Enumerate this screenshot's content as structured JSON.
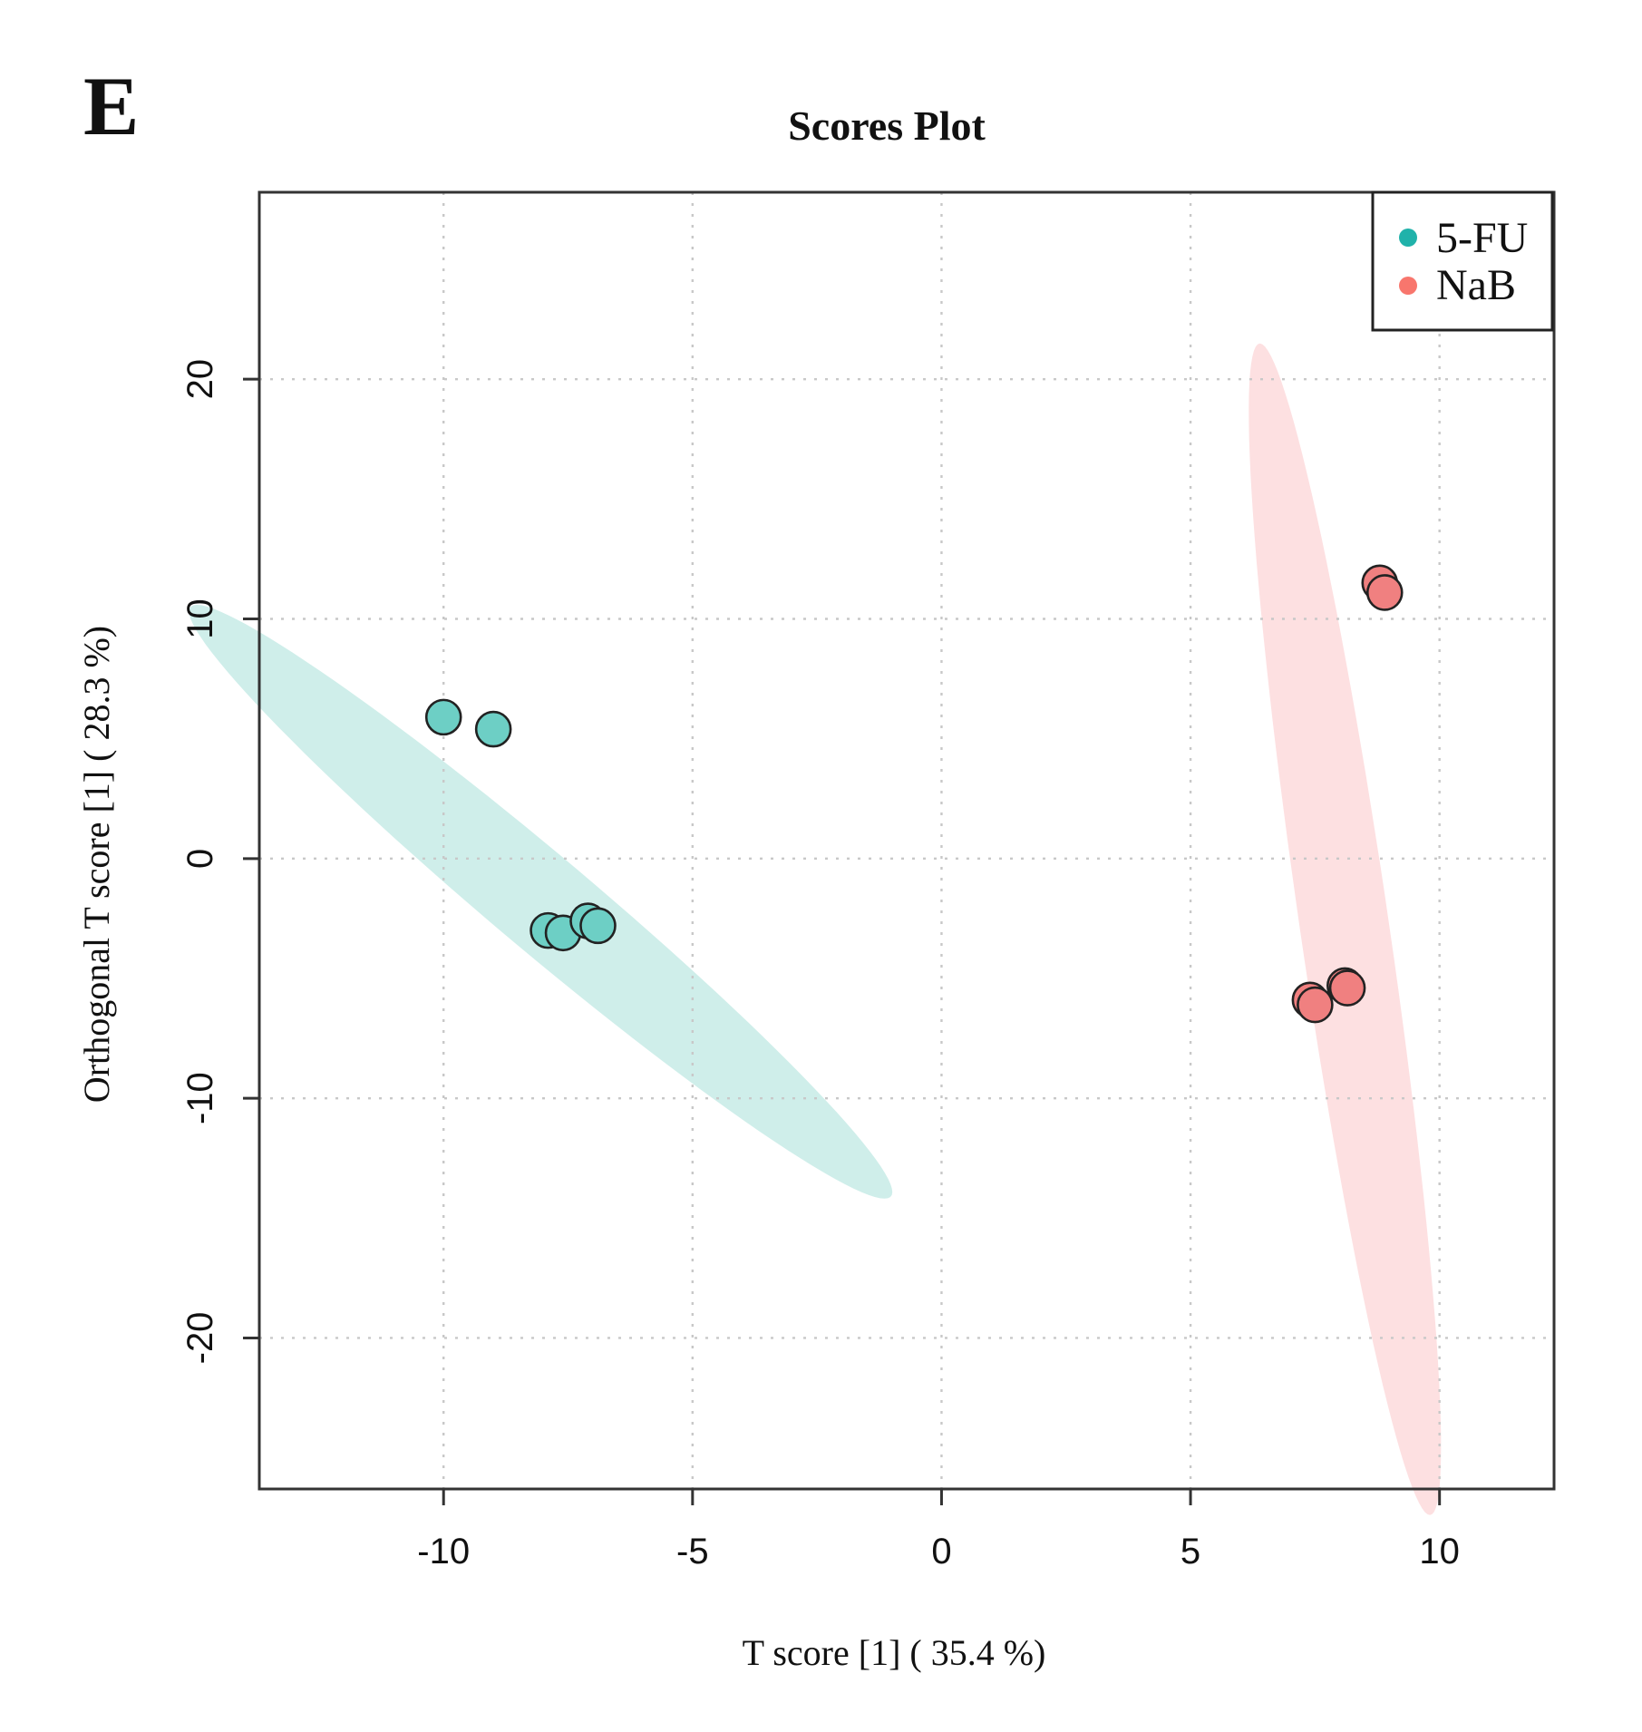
{
  "panel_label": "E",
  "chart_data": {
    "type": "scatter",
    "title": "Scores Plot",
    "xlabel": "T score [1] ( 35.4 %)",
    "ylabel": "Orthogonal T score [1] ( 28.3 %)",
    "xlim": [
      -13.7,
      12.3
    ],
    "ylim": [
      -26.3,
      27.8
    ],
    "xticks": [
      -10,
      -5,
      0,
      5,
      10
    ],
    "yticks": [
      -20,
      -10,
      0,
      10,
      20
    ],
    "grid": true,
    "legend_position": "top-right",
    "series": [
      {
        "name": "5-FU",
        "color": "#20B2AA",
        "fill": "#6DCFC5",
        "ellipse_color": "#cfeeea",
        "points": [
          {
            "x": -10.0,
            "y": 5.9
          },
          {
            "x": -9.0,
            "y": 5.4
          },
          {
            "x": -7.9,
            "y": -3.0
          },
          {
            "x": -7.6,
            "y": -3.1
          },
          {
            "x": -7.1,
            "y": -2.6
          },
          {
            "x": -6.9,
            "y": -2.8
          }
        ],
        "ellipse": {
          "cx": -8.05,
          "cy": -1.8,
          "rx": 14.2,
          "ry": 1.3,
          "angle_deg": -60.6
        }
      },
      {
        "name": "NaB",
        "color": "#F8766D",
        "fill": "#F08080",
        "ellipse_color": "#fde0e1",
        "points": [
          {
            "x": 8.8,
            "y": 11.5
          },
          {
            "x": 8.9,
            "y": 11.1
          },
          {
            "x": 8.1,
            "y": -5.3
          },
          {
            "x": 8.15,
            "y": -5.4
          },
          {
            "x": 7.4,
            "y": -5.9
          },
          {
            "x": 7.5,
            "y": -6.1
          }
        ],
        "ellipse": {
          "cx": 8.1,
          "cy": -2.95,
          "rx": 24.5,
          "ry": 0.9,
          "angle_deg": -86.0
        }
      }
    ]
  }
}
